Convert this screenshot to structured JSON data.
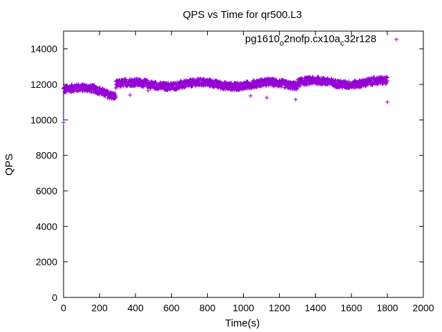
{
  "chart_data": {
    "type": "scatter",
    "title": "QPS vs Time for qr500.L3",
    "xlabel": "Time(s)",
    "ylabel": "QPS",
    "xlim": [
      0,
      2000
    ],
    "ylim": [
      0,
      15000
    ],
    "xticks": [
      0,
      200,
      400,
      600,
      800,
      1000,
      1200,
      1400,
      1600,
      1800,
      2000
    ],
    "yticks": [
      0,
      2000,
      4000,
      6000,
      8000,
      10000,
      12000,
      14000
    ],
    "grid": false,
    "legend_position": "top-right",
    "marker": "plus",
    "series": [
      {
        "name": "pg1610_o2nofp.cx10a_c32r128",
        "name_parts": {
          "a": "pg1610",
          "b": "o",
          "c": "2nofp.cx10a",
          "d": "c",
          "e": "32r128"
        },
        "color": "#9400d3",
        "segments": [
          {
            "t_start": 0,
            "t_end": 290,
            "level": 11700
          },
          {
            "t_start": 290,
            "t_end": 1300,
            "level": 12000
          },
          {
            "t_start": 1300,
            "t_end": 1800,
            "level": 12100
          }
        ],
        "outliers": [
          {
            "x": 0,
            "y": 9850
          },
          {
            "x": 370,
            "y": 11400
          },
          {
            "x": 470,
            "y": 11650
          },
          {
            "x": 1040,
            "y": 11350
          },
          {
            "x": 1130,
            "y": 11250
          },
          {
            "x": 1290,
            "y": 11150
          },
          {
            "x": 1800,
            "y": 11000
          }
        ]
      }
    ]
  }
}
